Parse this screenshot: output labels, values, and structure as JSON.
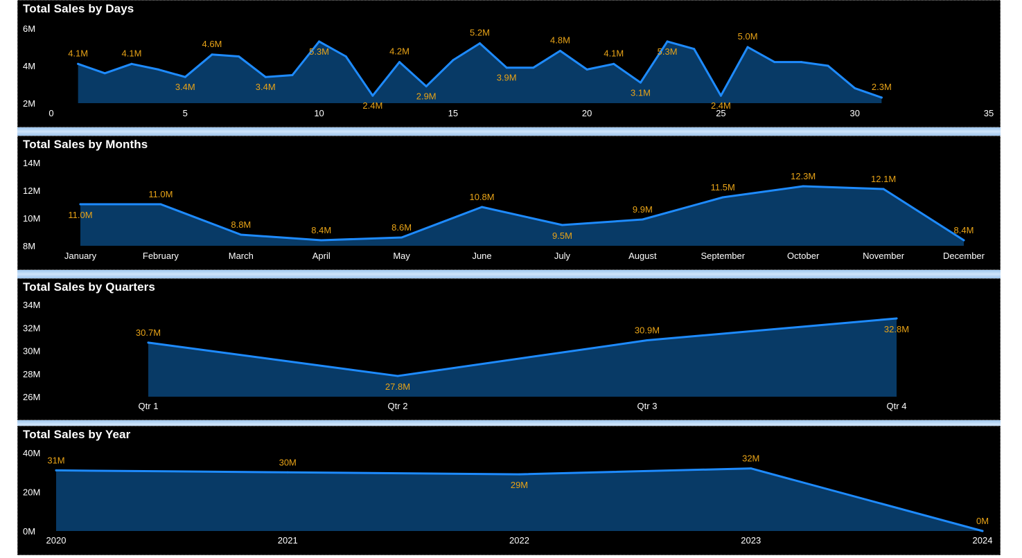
{
  "chart_data": [
    {
      "type": "area",
      "title": "Total Sales by Days",
      "xlim": [
        0,
        35
      ],
      "ylim": [
        2,
        6
      ],
      "xticks": [
        "0",
        "5",
        "10",
        "15",
        "20",
        "25",
        "30",
        "35"
      ],
      "yticks": [
        "6M",
        "4M",
        "2M"
      ],
      "x": [
        1,
        2,
        3,
        4,
        5,
        6,
        7,
        8,
        9,
        10,
        11,
        12,
        13,
        14,
        15,
        16,
        17,
        18,
        19,
        20,
        21,
        22,
        23,
        24,
        25,
        26,
        27,
        28,
        29,
        30,
        31
      ],
      "values": [
        4.1,
        3.6,
        4.1,
        3.8,
        3.4,
        4.6,
        4.5,
        3.4,
        3.5,
        5.3,
        4.5,
        2.4,
        4.2,
        2.9,
        4.3,
        5.2,
        3.9,
        3.9,
        4.8,
        3.8,
        4.1,
        3.1,
        5.3,
        4.9,
        2.4,
        5.0,
        4.2,
        4.2,
        4.0,
        2.8,
        2.3
      ],
      "data_labels": [
        {
          "x": 1,
          "text": "4.1M"
        },
        {
          "x": 3,
          "text": "4.1M"
        },
        {
          "x": 5,
          "text": "3.4M"
        },
        {
          "x": 6,
          "text": "4.6M"
        },
        {
          "x": 8,
          "text": "3.4M"
        },
        {
          "x": 10,
          "text": "5.3M"
        },
        {
          "x": 12,
          "text": "2.4M"
        },
        {
          "x": 13,
          "text": "4.2M"
        },
        {
          "x": 14,
          "text": "2.9M"
        },
        {
          "x": 16,
          "text": "5.2M"
        },
        {
          "x": 17,
          "text": "3.9M"
        },
        {
          "x": 19,
          "text": "4.8M"
        },
        {
          "x": 21,
          "text": "4.1M"
        },
        {
          "x": 22,
          "text": "3.1M"
        },
        {
          "x": 23,
          "text": "5.3M"
        },
        {
          "x": 25,
          "text": "2.4M"
        },
        {
          "x": 26,
          "text": "5.0M"
        },
        {
          "x": 31,
          "text": "2.3M"
        }
      ]
    },
    {
      "type": "area",
      "title": "Total Sales by Months",
      "ylim": [
        8,
        14
      ],
      "yticks": [
        "14M",
        "12M",
        "10M",
        "8M"
      ],
      "categories": [
        "January",
        "February",
        "March",
        "April",
        "May",
        "June",
        "July",
        "August",
        "September",
        "October",
        "November",
        "December"
      ],
      "values": [
        11.0,
        11.0,
        8.8,
        8.4,
        8.6,
        10.8,
        9.5,
        9.9,
        11.5,
        12.3,
        12.1,
        8.4
      ],
      "data_labels": [
        "11.0M",
        "11.0M",
        "8.8M",
        "8.4M",
        "8.6M",
        "10.8M",
        "9.5M",
        "9.9M",
        "11.5M",
        "12.3M",
        "12.1M",
        "8.4M"
      ]
    },
    {
      "type": "area",
      "title": "Total Sales by Quarters",
      "ylim": [
        26,
        34
      ],
      "yticks": [
        "34M",
        "32M",
        "30M",
        "28M",
        "26M"
      ],
      "categories": [
        "Qtr 1",
        "Qtr 2",
        "Qtr 3",
        "Qtr 4"
      ],
      "values": [
        30.7,
        27.8,
        30.9,
        32.8
      ],
      "data_labels": [
        "30.7M",
        "27.8M",
        "30.9M",
        "32.8M"
      ]
    },
    {
      "type": "area",
      "title": "Total Sales by Year",
      "ylim": [
        0,
        40
      ],
      "yticks": [
        "40M",
        "20M",
        "0M"
      ],
      "categories": [
        "2020",
        "2021",
        "2022",
        "2023",
        "2024"
      ],
      "values": [
        31,
        30,
        29,
        32,
        0
      ],
      "data_labels": [
        "31M",
        "30M",
        "29M",
        "32M",
        "0M"
      ]
    }
  ],
  "colors": {
    "line": "#1e8bff",
    "area": "#083a66",
    "data_label": "#e8a317",
    "background": "#000000",
    "text": "#ffffff"
  }
}
